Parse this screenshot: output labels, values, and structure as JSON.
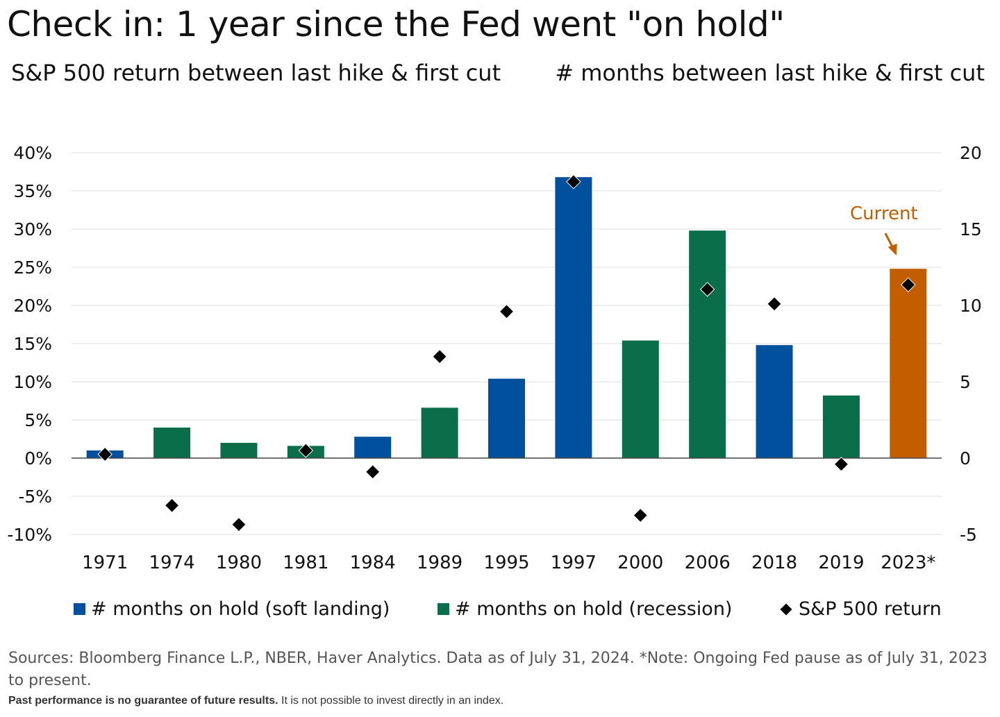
{
  "title": "Check in: 1 year since the Fed went \"on hold\"",
  "subtitle_left": "S&P 500 return between last hike & first cut",
  "subtitle_right": "# months between last hike & first cut",
  "colors": {
    "soft_landing": "#00509e",
    "recession": "#0a6e4a",
    "current": "#c25e00",
    "marker": "#000000",
    "grid": "#dddddd"
  },
  "chart_data": {
    "type": "bar",
    "categories": [
      "1971",
      "1974",
      "1980",
      "1981",
      "1984",
      "1989",
      "1995",
      "1997",
      "2000",
      "2006",
      "2018",
      "2019",
      "2023*"
    ],
    "series": [
      {
        "name": "# months on hold",
        "axis": "right",
        "values": [
          0.5,
          2,
          1,
          0.8,
          1.4,
          3.3,
          5.2,
          18.4,
          7.7,
          14.9,
          7.4,
          4.1,
          12.4
        ],
        "types": [
          "soft landing",
          "recession",
          "recession",
          "recession",
          "soft landing",
          "recession",
          "soft landing",
          "soft landing",
          "recession",
          "recession",
          "soft landing",
          "recession",
          "current"
        ]
      },
      {
        "name": "S&P 500 return",
        "axis": "left",
        "unit": "%",
        "values": [
          0.5,
          -6.2,
          -8.7,
          1.0,
          -1.8,
          13.3,
          19.2,
          36.2,
          -7.5,
          22.1,
          20.2,
          -0.8,
          22.7
        ]
      }
    ],
    "left_axis": {
      "min": -10,
      "max": 40,
      "ticks": [
        "40%",
        "35%",
        "30%",
        "25%",
        "20%",
        "15%",
        "10%",
        "5%",
        "0%",
        "-5%",
        "-10%"
      ]
    },
    "right_axis": {
      "min": -5,
      "max": 20,
      "ticks": [
        "20",
        "15",
        "10",
        "5",
        "0",
        "-5"
      ]
    },
    "annotation": "Current",
    "legend": [
      {
        "label": "# months on hold (soft landing)",
        "marker": "square-blue"
      },
      {
        "label": "# months on hold (recession)",
        "marker": "square-green"
      },
      {
        "label": "S&P 500 return",
        "marker": "diamond"
      }
    ]
  },
  "footer": {
    "sources": "Sources: Bloomberg Finance L.P., NBER, Haver Analytics. Data as of July 31, 2024.  *Note: Ongoing Fed pause as of July 31, 2023 to present.",
    "disclaimer_bold": "Past performance is no guarantee of future results.",
    "disclaimer": " It is not possible to invest directly in an index."
  }
}
